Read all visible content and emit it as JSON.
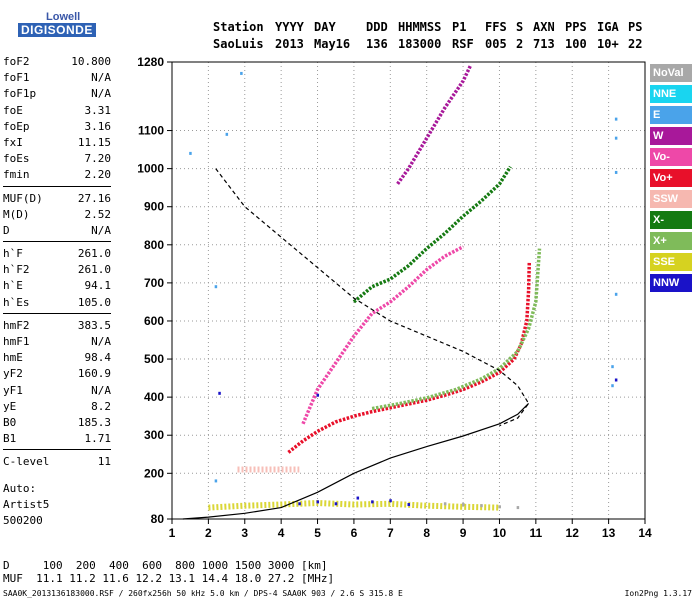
{
  "logo": {
    "line1": "Lowell",
    "line2": "DIGISONDE"
  },
  "header": {
    "labels": [
      "Station",
      "YYYY",
      "DAY",
      "DDD",
      "HHMMSS",
      "P1",
      "FFS",
      "S",
      "AXN",
      "PPS",
      "IGA",
      "PS"
    ],
    "values": [
      "SaoLuis",
      "2013",
      "May16",
      "136",
      "183000",
      "RSF",
      "005",
      "2",
      "713",
      "100",
      "10+",
      "22"
    ]
  },
  "params": [
    [
      {
        "k": "foF2",
        "v": "10.800"
      },
      {
        "k": "foF1",
        "v": "N/A"
      },
      {
        "k": "foF1p",
        "v": "N/A"
      },
      {
        "k": "foE",
        "v": "3.31"
      },
      {
        "k": "foEp",
        "v": "3.16"
      },
      {
        "k": "fxI",
        "v": "11.15"
      },
      {
        "k": "foEs",
        "v": "7.20"
      },
      {
        "k": "fmin",
        "v": "2.20"
      }
    ],
    [
      {
        "k": "MUF(D)",
        "v": "27.16"
      },
      {
        "k": "M(D)",
        "v": "2.52"
      },
      {
        "k": "D",
        "v": "N/A"
      }
    ],
    [
      {
        "k": "h`F",
        "v": "261.0"
      },
      {
        "k": "h`F2",
        "v": "261.0"
      },
      {
        "k": "h`E",
        "v": "94.1"
      },
      {
        "k": "h`Es",
        "v": "105.0"
      }
    ],
    [
      {
        "k": "hmF2",
        "v": "383.5"
      },
      {
        "k": "hmF1",
        "v": "N/A"
      },
      {
        "k": "hmE",
        "v": "98.4"
      },
      {
        "k": "yF2",
        "v": "160.9"
      },
      {
        "k": "yF1",
        "v": "N/A"
      },
      {
        "k": "yE",
        "v": "8.2"
      },
      {
        "k": "B0",
        "v": "185.3"
      },
      {
        "k": "B1",
        "v": "1.71"
      }
    ],
    [
      {
        "k": "C-level",
        "v": "11"
      }
    ]
  ],
  "auto": {
    "line1": "Auto:",
    "line2": "Artist5",
    "line3": "500200"
  },
  "legend": [
    {
      "label": "NoVal",
      "color": "#a8a8a8"
    },
    {
      "label": "NNE",
      "color": "#19d5f0"
    },
    {
      "label": "E",
      "color": "#4aa3ea"
    },
    {
      "label": "W",
      "color": "#a8189a"
    },
    {
      "label": "Vo-",
      "color": "#ee48a8"
    },
    {
      "label": "Vo+",
      "color": "#e8102a"
    },
    {
      "label": "SSW",
      "color": "#f6b8b0"
    },
    {
      "label": "X-",
      "color": "#157a12"
    },
    {
      "label": "X+",
      "color": "#7fbb5a"
    },
    {
      "label": "SSE",
      "color": "#d6d220"
    },
    {
      "label": "NNW",
      "color": "#1a12c8"
    }
  ],
  "bottom": {
    "line1": "D     100  200  400  600  800 1000 1500 3000 [km]",
    "line2": "MUF  11.1 11.2 11.6 12.2 13.1 14.4 18.0 27.2 [MHz]"
  },
  "footer": {
    "left": "SAA0K_2013136183000.RSF / 260fx256h 50 kHz 5.0 km / DPS-4 SAA0K 903 / 2.6 S 315.8 E",
    "right": "Ion2Png 1.3.17"
  },
  "chart_data": {
    "type": "scatter",
    "title": "",
    "xlabel": "",
    "ylabel": "",
    "xlim": [
      1,
      14
    ],
    "ylim": [
      80,
      1280
    ],
    "xticks": [
      1,
      2,
      3,
      4,
      5,
      6,
      7,
      8,
      9,
      10,
      11,
      12,
      13,
      14
    ],
    "yticks": [
      80,
      200,
      300,
      400,
      500,
      600,
      700,
      800,
      900,
      1000,
      1100,
      1280
    ],
    "grid": true,
    "series": [
      {
        "name": "Vo+",
        "color": "#e8102a",
        "kind": "trace",
        "points": [
          [
            4.2,
            255
          ],
          [
            4.6,
            285
          ],
          [
            5.0,
            310
          ],
          [
            5.5,
            335
          ],
          [
            6.0,
            350
          ],
          [
            6.5,
            362
          ],
          [
            7.0,
            372
          ],
          [
            7.5,
            382
          ],
          [
            8.0,
            392
          ],
          [
            8.5,
            405
          ],
          [
            9.0,
            420
          ],
          [
            9.5,
            440
          ],
          [
            10.0,
            465
          ],
          [
            10.4,
            500
          ],
          [
            10.6,
            540
          ],
          [
            10.75,
            600
          ],
          [
            10.8,
            680
          ],
          [
            10.82,
            755
          ]
        ]
      },
      {
        "name": "X+",
        "color": "#7fbb5a",
        "kind": "trace",
        "points": [
          [
            6.5,
            370
          ],
          [
            7.2,
            382
          ],
          [
            8.0,
            398
          ],
          [
            8.8,
            420
          ],
          [
            9.5,
            448
          ],
          [
            10.0,
            475
          ],
          [
            10.5,
            520
          ],
          [
            10.8,
            580
          ],
          [
            11.0,
            650
          ],
          [
            11.1,
            790
          ]
        ]
      },
      {
        "name": "Vo-",
        "color": "#ee48a8",
        "kind": "trace",
        "points": [
          [
            4.6,
            330
          ],
          [
            5.0,
            420
          ],
          [
            5.5,
            490
          ],
          [
            6.0,
            560
          ],
          [
            6.5,
            620
          ],
          [
            7.0,
            650
          ],
          [
            7.5,
            690
          ],
          [
            8.0,
            735
          ],
          [
            8.5,
            770
          ],
          [
            9.0,
            795
          ]
        ]
      },
      {
        "name": "X-",
        "color": "#157a12",
        "kind": "trace",
        "points": [
          [
            6.0,
            650
          ],
          [
            6.5,
            690
          ],
          [
            7.0,
            710
          ],
          [
            7.5,
            745
          ],
          [
            8.0,
            790
          ],
          [
            8.5,
            830
          ],
          [
            9.0,
            875
          ],
          [
            9.5,
            915
          ],
          [
            10.0,
            960
          ],
          [
            10.3,
            1005
          ]
        ]
      },
      {
        "name": "W",
        "color": "#a8189a",
        "kind": "trace",
        "points": [
          [
            7.2,
            960
          ],
          [
            7.5,
            1000
          ],
          [
            8.0,
            1080
          ],
          [
            8.5,
            1160
          ],
          [
            9.0,
            1230
          ],
          [
            9.2,
            1270
          ]
        ]
      },
      {
        "name": "E",
        "color": "#4aa3ea",
        "kind": "points",
        "points": [
          [
            1.5,
            1040
          ],
          [
            2.5,
            1090
          ],
          [
            2.2,
            690
          ],
          [
            2.2,
            180
          ],
          [
            13.2,
            1130
          ],
          [
            13.2,
            1080
          ],
          [
            13.2,
            990
          ],
          [
            13.2,
            670
          ],
          [
            13.1,
            480
          ],
          [
            13.1,
            430
          ],
          [
            2.9,
            1250
          ]
        ]
      },
      {
        "name": "SSE",
        "color": "#d6d220",
        "kind": "band",
        "points": [
          [
            2.0,
            110
          ],
          [
            3.0,
            115
          ],
          [
            4.0,
            118
          ],
          [
            5.0,
            122
          ],
          [
            6.0,
            118
          ],
          [
            7.0,
            120
          ],
          [
            8.0,
            115
          ],
          [
            9.0,
            112
          ],
          [
            10.0,
            110
          ]
        ]
      },
      {
        "name": "NNW",
        "color": "#1a12c8",
        "kind": "points",
        "points": [
          [
            4.5,
            120
          ],
          [
            5.0,
            125
          ],
          [
            5.5,
            120
          ],
          [
            6.1,
            135
          ],
          [
            6.5,
            125
          ],
          [
            7.0,
            128
          ],
          [
            7.5,
            118
          ],
          [
            5.0,
            405
          ],
          [
            2.3,
            410
          ],
          [
            13.2,
            445
          ]
        ]
      },
      {
        "name": "SSW",
        "color": "#f6b8b0",
        "kind": "band",
        "points": [
          [
            2.8,
            210
          ],
          [
            3.5,
            210
          ],
          [
            4.0,
            210
          ],
          [
            4.5,
            210
          ]
        ]
      },
      {
        "name": "NoVal",
        "color": "#a8a8a8",
        "kind": "points",
        "points": [
          [
            8.5,
            120
          ],
          [
            9.0,
            118
          ],
          [
            9.5,
            115
          ],
          [
            10.0,
            112
          ],
          [
            10.5,
            110
          ]
        ]
      }
    ],
    "profiles": [
      {
        "name": "electron density profile",
        "style": "solid",
        "points": [
          [
            1.3,
            80
          ],
          [
            2.0,
            85
          ],
          [
            3.0,
            95
          ],
          [
            4.0,
            110
          ],
          [
            5.0,
            150
          ],
          [
            6.0,
            200
          ],
          [
            7.0,
            240
          ],
          [
            8.0,
            270
          ],
          [
            9.0,
            298
          ],
          [
            10.0,
            330
          ],
          [
            10.5,
            355
          ],
          [
            10.8,
            383.5
          ]
        ]
      },
      {
        "name": "MUF curve",
        "style": "dashed",
        "points": [
          [
            2.2,
            1000
          ],
          [
            3.0,
            900
          ],
          [
            4.0,
            820
          ],
          [
            5.0,
            740
          ],
          [
            6.0,
            660
          ],
          [
            7.0,
            600
          ],
          [
            8.0,
            560
          ],
          [
            9.0,
            520
          ],
          [
            10.0,
            470
          ],
          [
            10.5,
            430
          ],
          [
            10.8,
            383.5
          ],
          [
            10.5,
            345
          ],
          [
            10.0,
            325
          ]
        ]
      }
    ]
  }
}
